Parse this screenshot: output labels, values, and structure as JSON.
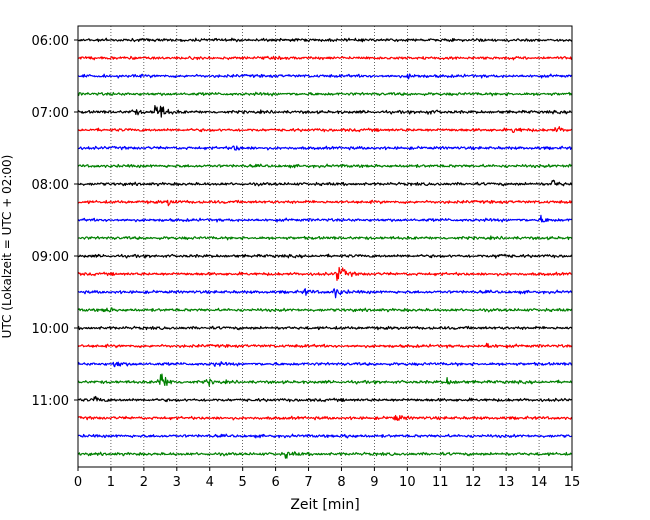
{
  "chart_data": {
    "type": "line",
    "title": "",
    "xlabel": "Zeit  [min]",
    "ylabel": "UTC (Lokalzeit = UTC + 02:00)",
    "xlim": [
      0,
      15
    ],
    "x_ticks": [
      0,
      1,
      2,
      3,
      4,
      5,
      6,
      7,
      8,
      9,
      10,
      11,
      12,
      13,
      14,
      15
    ],
    "y_tick_labels": [
      "06:00",
      "07:00",
      "08:00",
      "09:00",
      "10:00",
      "11:00"
    ],
    "grid": "vertical dotted",
    "trace_colors": [
      "#000000",
      "#ff0000",
      "#0000ff",
      "#008000"
    ],
    "traces": [
      {
        "start": "06:00",
        "color": "#000000",
        "events": []
      },
      {
        "start": "06:15",
        "color": "#ff0000",
        "events": []
      },
      {
        "start": "06:30",
        "color": "#0000ff",
        "events": [
          {
            "t": 10.0,
            "amp": 2
          }
        ]
      },
      {
        "start": "06:45",
        "color": "#008000",
        "events": []
      },
      {
        "start": "07:00",
        "color": "#000000",
        "events": [
          {
            "t": 1.65,
            "amp": 3
          },
          {
            "t": 2.35,
            "amp": 16
          },
          {
            "t": 10.55,
            "amp": 2
          }
        ]
      },
      {
        "start": "07:15",
        "color": "#ff0000",
        "events": [
          {
            "t": 13.2,
            "amp": 3
          },
          {
            "t": 14.5,
            "amp": 3
          }
        ]
      },
      {
        "start": "07:30",
        "color": "#0000ff",
        "events": [
          {
            "t": 4.7,
            "amp": 3
          }
        ]
      },
      {
        "start": "07:45",
        "color": "#008000",
        "events": [
          {
            "t": 14.85,
            "amp": 2
          }
        ]
      },
      {
        "start": "08:00",
        "color": "#000000",
        "events": [
          {
            "t": 14.4,
            "amp": 4
          }
        ]
      },
      {
        "start": "08:15",
        "color": "#ff0000",
        "events": [
          {
            "t": 2.7,
            "amp": 3
          }
        ]
      },
      {
        "start": "08:30",
        "color": "#0000ff",
        "events": [
          {
            "t": 14.05,
            "amp": 3
          }
        ]
      },
      {
        "start": "08:45",
        "color": "#008000",
        "events": []
      },
      {
        "start": "09:00",
        "color": "#000000",
        "events": [
          {
            "t": 12.7,
            "amp": 3
          }
        ]
      },
      {
        "start": "09:15",
        "color": "#ff0000",
        "events": [
          {
            "t": 7.85,
            "amp": 11
          }
        ]
      },
      {
        "start": "09:30",
        "color": "#0000ff",
        "events": [
          {
            "t": 6.85,
            "amp": 3
          },
          {
            "t": 7.75,
            "amp": 6
          }
        ]
      },
      {
        "start": "09:45",
        "color": "#008000",
        "events": [
          {
            "t": 0.8,
            "amp": 3
          }
        ]
      },
      {
        "start": "10:00",
        "color": "#000000",
        "events": []
      },
      {
        "start": "10:15",
        "color": "#ff0000",
        "events": [
          {
            "t": 12.4,
            "amp": 3
          }
        ]
      },
      {
        "start": "10:30",
        "color": "#0000ff",
        "events": [
          {
            "t": 1.1,
            "amp": 4
          },
          {
            "t": 4.1,
            "amp": 2
          }
        ]
      },
      {
        "start": "10:45",
        "color": "#008000",
        "events": [
          {
            "t": 2.45,
            "amp": 14
          },
          {
            "t": 3.9,
            "amp": 3
          },
          {
            "t": 11.2,
            "amp": 3
          }
        ]
      },
      {
        "start": "11:00",
        "color": "#000000",
        "events": [
          {
            "t": 0.5,
            "amp": 3
          }
        ]
      },
      {
        "start": "11:15",
        "color": "#ff0000",
        "events": [
          {
            "t": 9.6,
            "amp": 4
          }
        ]
      },
      {
        "start": "11:30",
        "color": "#0000ff",
        "events": [
          {
            "t": 8.1,
            "amp": 2
          }
        ]
      },
      {
        "start": "11:45",
        "color": "#008000",
        "events": [
          {
            "t": 6.3,
            "amp": 3
          }
        ]
      }
    ]
  }
}
